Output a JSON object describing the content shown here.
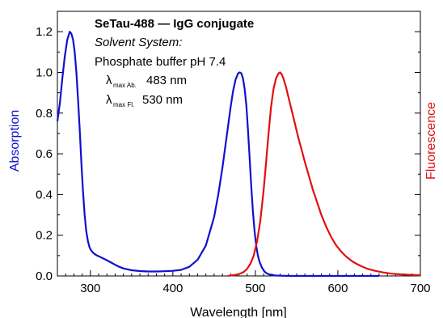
{
  "chart_data": {
    "type": "line",
    "xlabel": "Wavelength [nm]",
    "ylabel_left": "Absorption",
    "ylabel_right": "Fluorescence",
    "xlim": [
      260,
      700
    ],
    "ylim": [
      0,
      1.3
    ],
    "xticks": [
      300,
      400,
      500,
      600,
      700
    ],
    "xtick_labels": [
      "300",
      "400",
      "500",
      "600",
      "700"
    ],
    "yticks": [
      0,
      0.2,
      0.4,
      0.6,
      0.8,
      1.0,
      1.2
    ],
    "ytick_labels": [
      "0.0",
      "0.2",
      "0.4",
      "0.6",
      "0.8",
      "1.0",
      "1.2"
    ],
    "grid": false,
    "annotations": {
      "title": "SeTau-488 — IgG conjugate",
      "solvent_label": "Solvent System:",
      "solvent": "Phosphate buffer pH 7.4",
      "lambda": "λ",
      "abs_subscript": "max Ab.",
      "abs_value": "483 nm",
      "fl_subscript": "max Fl.",
      "fl_value": "530 nm"
    },
    "series": [
      {
        "name": "Absorption",
        "color": "#1010d0",
        "x": [
          260,
          263,
          266,
          269,
          272,
          275,
          277,
          279,
          281,
          283,
          285,
          287,
          289,
          291,
          293,
          295,
          297,
          299,
          301,
          303,
          305,
          308,
          312,
          316,
          320,
          325,
          330,
          335,
          340,
          350,
          360,
          370,
          380,
          390,
          400,
          410,
          420,
          430,
          440,
          450,
          455,
          460,
          465,
          470,
          473,
          476,
          479,
          481,
          483,
          485,
          487,
          489,
          491,
          493,
          495,
          497,
          499,
          501,
          503,
          505,
          508,
          511,
          514,
          517,
          520,
          525,
          530,
          540,
          550,
          570,
          600,
          650
        ],
        "y": [
          0.76,
          0.85,
          0.97,
          1.08,
          1.16,
          1.2,
          1.19,
          1.16,
          1.1,
          1.0,
          0.87,
          0.72,
          0.56,
          0.42,
          0.3,
          0.22,
          0.17,
          0.14,
          0.125,
          0.115,
          0.108,
          0.1,
          0.093,
          0.085,
          0.077,
          0.066,
          0.055,
          0.045,
          0.037,
          0.028,
          0.024,
          0.022,
          0.022,
          0.023,
          0.025,
          0.03,
          0.045,
          0.08,
          0.15,
          0.29,
          0.4,
          0.53,
          0.68,
          0.83,
          0.91,
          0.965,
          0.995,
          1.0,
          0.995,
          0.97,
          0.92,
          0.84,
          0.72,
          0.58,
          0.44,
          0.32,
          0.22,
          0.15,
          0.1,
          0.07,
          0.04,
          0.022,
          0.012,
          0.007,
          0.004,
          0.002,
          0.001,
          0.0,
          0.0,
          0.0,
          0.0,
          0.0
        ]
      },
      {
        "name": "Fluorescence",
        "color": "#e01010",
        "x": [
          467,
          472,
          477,
          482,
          486,
          490,
          494,
          498,
          502,
          506,
          510,
          513,
          516,
          519,
          522,
          525,
          528,
          530,
          532,
          534,
          537,
          540,
          543,
          546,
          549,
          552,
          556,
          560,
          565,
          570,
          575,
          580,
          586,
          592,
          598,
          604,
          610,
          618,
          626,
          635,
          645,
          655,
          665,
          675,
          685,
          695,
          700
        ],
        "y": [
          0.0,
          0.003,
          0.006,
          0.012,
          0.02,
          0.035,
          0.06,
          0.1,
          0.17,
          0.27,
          0.42,
          0.56,
          0.7,
          0.83,
          0.92,
          0.97,
          0.995,
          1.0,
          0.99,
          0.97,
          0.93,
          0.88,
          0.83,
          0.78,
          0.73,
          0.68,
          0.62,
          0.56,
          0.49,
          0.42,
          0.36,
          0.3,
          0.24,
          0.19,
          0.15,
          0.12,
          0.095,
          0.07,
          0.052,
          0.036,
          0.025,
          0.017,
          0.011,
          0.008,
          0.006,
          0.004,
          0.003
        ]
      }
    ]
  }
}
